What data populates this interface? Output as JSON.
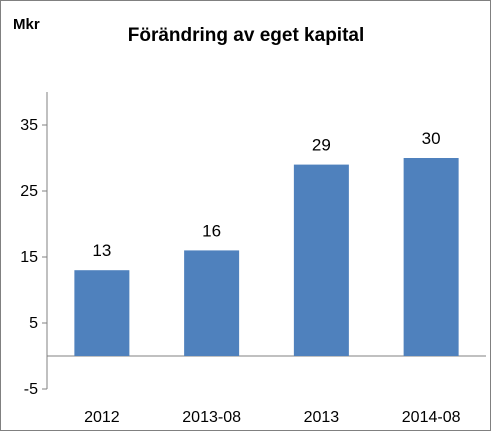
{
  "chart_data": {
    "type": "bar",
    "title": "Förändring av eget kapital",
    "unit_label": "Mkr",
    "categories": [
      "2012",
      "2013-08",
      "2013",
      "2014-08"
    ],
    "values": [
      13,
      16,
      29,
      30
    ],
    "data_labels": [
      "13",
      "16",
      "29",
      "30"
    ],
    "y_ticks": [
      -5,
      5,
      15,
      25,
      35
    ],
    "y_tick_labels": [
      "-5",
      "5",
      "15",
      "25",
      "35"
    ],
    "ylim": [
      -5,
      40
    ],
    "bar_color": "#4F81BD",
    "grid": false,
    "legend": "none"
  }
}
